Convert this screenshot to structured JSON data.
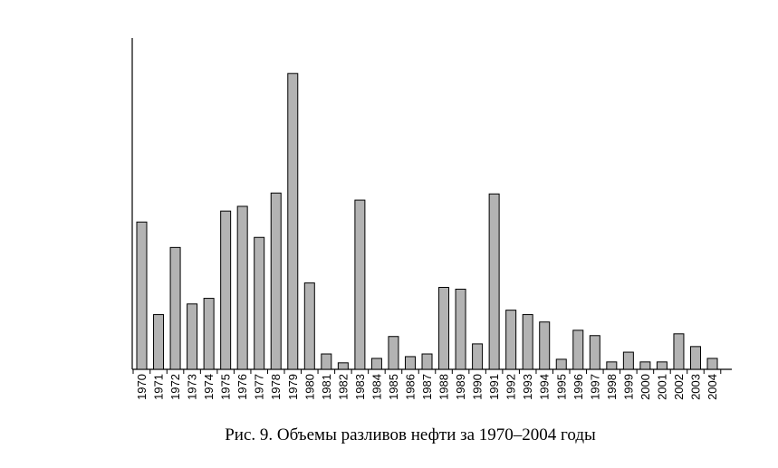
{
  "caption": "Рис. 9. Объемы разливов нефти за 1970–2004 годы",
  "chart_data": {
    "type": "bar",
    "categories": [
      "1970",
      "1971",
      "1972",
      "1973",
      "1974",
      "1975",
      "1976",
      "1977",
      "1978",
      "1979",
      "1980",
      "1981",
      "1982",
      "1983",
      "1984",
      "1985",
      "1986",
      "1987",
      "1988",
      "1989",
      "1990",
      "1991",
      "1992",
      "1993",
      "1994",
      "1995",
      "1996",
      "1997",
      "1998",
      "1999",
      "2000",
      "2001",
      "2002",
      "2003",
      "2004"
    ],
    "values": [
      49.8,
      18.5,
      41.2,
      22.1,
      24.0,
      53.5,
      55.1,
      44.6,
      59.6,
      100,
      29.2,
      5.2,
      2.2,
      57.2,
      3.7,
      11.1,
      4.3,
      5.2,
      27.7,
      27.1,
      8.6,
      59.3,
      20.0,
      18.5,
      16.0,
      3.4,
      13.2,
      11.4,
      2.5,
      5.8,
      2.5,
      2.5,
      12.0,
      7.7,
      3.7
    ],
    "title": "",
    "xlabel": "",
    "ylabel": "",
    "ylim": [
      0,
      112
    ],
    "bar_color": "#b3b3b3",
    "bar_stroke": "#000000",
    "grid": false,
    "y_ticks_shown": false
  }
}
